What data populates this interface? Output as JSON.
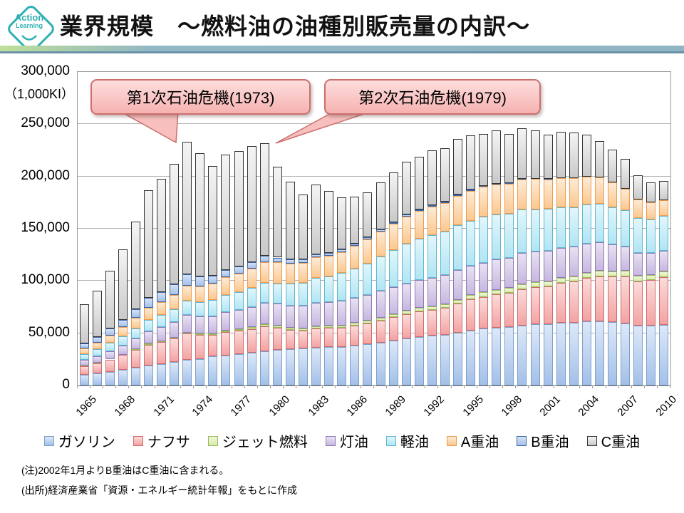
{
  "logo": {
    "line1": "Action",
    "line2": "Learning"
  },
  "header": {
    "title": "業界規模　～燃料油の油種別販売量の内訳～"
  },
  "annotations": [
    {
      "text": "第1次石油危機(1973)"
    },
    {
      "text": "第2次石油危機(1979)"
    }
  ],
  "notes": {
    "note1": "(注)2002年1月よりB重油はC重油に含まれる。",
    "note2": "(出所)経済産業省「資源・エネルギー統計年報」をもとに作成"
  },
  "chart_data": {
    "type": "bar",
    "stacked": true,
    "title": "燃料油の油種別販売量の内訳",
    "ylabel_unit": "（1,000KI）",
    "y_axis": {
      "min": 0,
      "max": 300000,
      "step": 50000,
      "tick_labels": [
        "300,000",
        "250,000",
        "200,000",
        "150,000",
        "100,000",
        "50,000",
        "0"
      ]
    },
    "x_tick_labels": [
      "1965",
      "1968",
      "1971",
      "1974",
      "1977",
      "1980",
      "1983",
      "1986",
      "1989",
      "1992",
      "1995",
      "1998",
      "2001",
      "2004",
      "2007",
      "2010"
    ],
    "years": [
      1965,
      1966,
      1967,
      1968,
      1969,
      1970,
      1971,
      1972,
      1973,
      1974,
      1975,
      1976,
      1977,
      1978,
      1979,
      1980,
      1981,
      1982,
      1983,
      1984,
      1985,
      1986,
      1987,
      1988,
      1989,
      1990,
      1991,
      1992,
      1993,
      1994,
      1995,
      1996,
      1997,
      1998,
      1999,
      2000,
      2001,
      2002,
      2003,
      2004,
      2005,
      2006,
      2007,
      2008,
      2009,
      2010
    ],
    "series": [
      {
        "name": "ガソリン",
        "fill_top": "#dde8f8",
        "fill_bottom": "#a3c0e8",
        "border": "#7aa0cf",
        "values": [
          10500,
          11800,
          13300,
          15000,
          16800,
          18800,
          20600,
          22600,
          24600,
          25100,
          27700,
          28600,
          29900,
          31600,
          33000,
          34300,
          34800,
          35800,
          36400,
          36600,
          37000,
          38200,
          39300,
          41100,
          43000,
          45000,
          46400,
          47700,
          48600,
          50600,
          52800,
          54300,
          55100,
          56200,
          57600,
          58400,
          58800,
          59900,
          60000,
          61500,
          61400,
          60500,
          59300,
          57300,
          57500,
          58200
        ]
      },
      {
        "name": "ナフサ",
        "fill_top": "#fbdbda",
        "fill_bottom": "#f3a3a3",
        "border": "#cf6b69",
        "values": [
          8000,
          9600,
          11600,
          14000,
          17000,
          20300,
          21000,
          22300,
          24900,
          23400,
          20800,
          22800,
          22400,
          22300,
          23700,
          20700,
          18100,
          16700,
          18000,
          18700,
          18200,
          19100,
          19900,
          21200,
          22300,
          23400,
          24400,
          24900,
          25900,
          27800,
          29600,
          30400,
          31900,
          32300,
          34400,
          35500,
          36300,
          38300,
          39400,
          41400,
          42800,
          43700,
          44900,
          42500,
          43500,
          45500
        ]
      },
      {
        "name": "ジェット燃料",
        "fill_top": "#f0f7dd",
        "fill_bottom": "#d8ebab",
        "border": "#9bbb59",
        "values": [
          400,
          450,
          500,
          550,
          700,
          900,
          950,
          1000,
          1200,
          1250,
          1300,
          1400,
          1500,
          1700,
          1900,
          2000,
          2100,
          2150,
          2200,
          2250,
          2300,
          2400,
          2600,
          2800,
          3000,
          3200,
          3300,
          3400,
          3500,
          3700,
          4100,
          4300,
          4500,
          4600,
          4700,
          4700,
          4600,
          4700,
          4800,
          5100,
          5300,
          5200,
          5300,
          5100,
          5000,
          5100
        ]
      },
      {
        "name": "灯油",
        "fill_top": "#e8e2f2",
        "fill_bottom": "#c6b7df",
        "border": "#8f79b5",
        "values": [
          5400,
          6300,
          7400,
          8700,
          10200,
          12000,
          13100,
          14600,
          16800,
          16300,
          16500,
          17600,
          18300,
          19600,
          20800,
          21400,
          21500,
          21600,
          22700,
          22300,
          23400,
          24200,
          25000,
          25400,
          25700,
          26000,
          26700,
          27300,
          27800,
          28700,
          28300,
          28600,
          29000,
          29200,
          29800,
          29700,
          29500,
          29000,
          28500,
          27800,
          27600,
          25900,
          23500,
          21900,
          20800,
          20400
        ]
      },
      {
        "name": "軽油",
        "fill_top": "#e2f6fb",
        "fill_bottom": "#b0e5f3",
        "border": "#5fb5d0",
        "values": [
          5900,
          6800,
          7900,
          9000,
          10000,
          11000,
          11700,
          12800,
          13900,
          14000,
          15300,
          16400,
          17300,
          18300,
          19000,
          19400,
          20700,
          22000,
          23400,
          24600,
          26600,
          28100,
          30100,
          32800,
          35300,
          37900,
          39400,
          40600,
          41300,
          42500,
          42800,
          43700,
          43200,
          42300,
          41800,
          40300,
          39600,
          38700,
          38000,
          37200,
          36500,
          35400,
          34400,
          33400,
          32200,
          32900
        ]
      },
      {
        "name": "A重油",
        "fill_top": "#fdebd7",
        "fill_bottom": "#fbc890",
        "border": "#ef9c4e",
        "values": [
          5300,
          6200,
          7300,
          8500,
          9800,
          11300,
          12200,
          13200,
          14300,
          14500,
          15900,
          16800,
          17500,
          18600,
          19600,
          20000,
          19500,
          19000,
          19800,
          19600,
          20300,
          21400,
          22900,
          24300,
          25400,
          26400,
          27000,
          27400,
          27700,
          28300,
          28700,
          28900,
          28800,
          28600,
          29000,
          28900,
          28200,
          28000,
          27500,
          26500,
          25400,
          23500,
          20900,
          17900,
          16200,
          15300
        ]
      },
      {
        "name": "B重油",
        "fill_top": "#d6e1f4",
        "fill_bottom": "#a6c1e9",
        "border": "#3f67a6",
        "values": [
          4600,
          5300,
          6300,
          7300,
          8400,
          9500,
          10000,
          10400,
          10600,
          9800,
          7600,
          7200,
          6800,
          6200,
          5800,
          4600,
          3900,
          3300,
          2900,
          2600,
          2300,
          2100,
          1900,
          1700,
          1600,
          1500,
          1300,
          1200,
          1100,
          1000,
          900,
          800,
          700,
          600,
          500,
          500,
          400,
          0,
          0,
          0,
          0,
          0,
          0,
          0,
          0,
          0
        ]
      },
      {
        "name": "C重油",
        "fill_top": "#f4f4f4",
        "fill_bottom": "#c9c9c9",
        "border": "#333333",
        "values": [
          37900,
          44550,
          55700,
          66950,
          84100,
          103200,
          108450,
          115100,
          126700,
          117650,
          104900,
          110200,
          110300,
          110700,
          108200,
          86600,
          74400,
          62450,
          66600,
          59350,
          49900,
          45500,
          43300,
          44700,
          47700,
          50600,
          50500,
          52500,
          51100,
          53400,
          51800,
          50000,
          50800,
          47200,
          48200,
          46000,
          42600,
          44400,
          43800,
          40500,
          35000,
          31800,
          28700,
          22900,
          18800,
          18600
        ]
      }
    ]
  }
}
